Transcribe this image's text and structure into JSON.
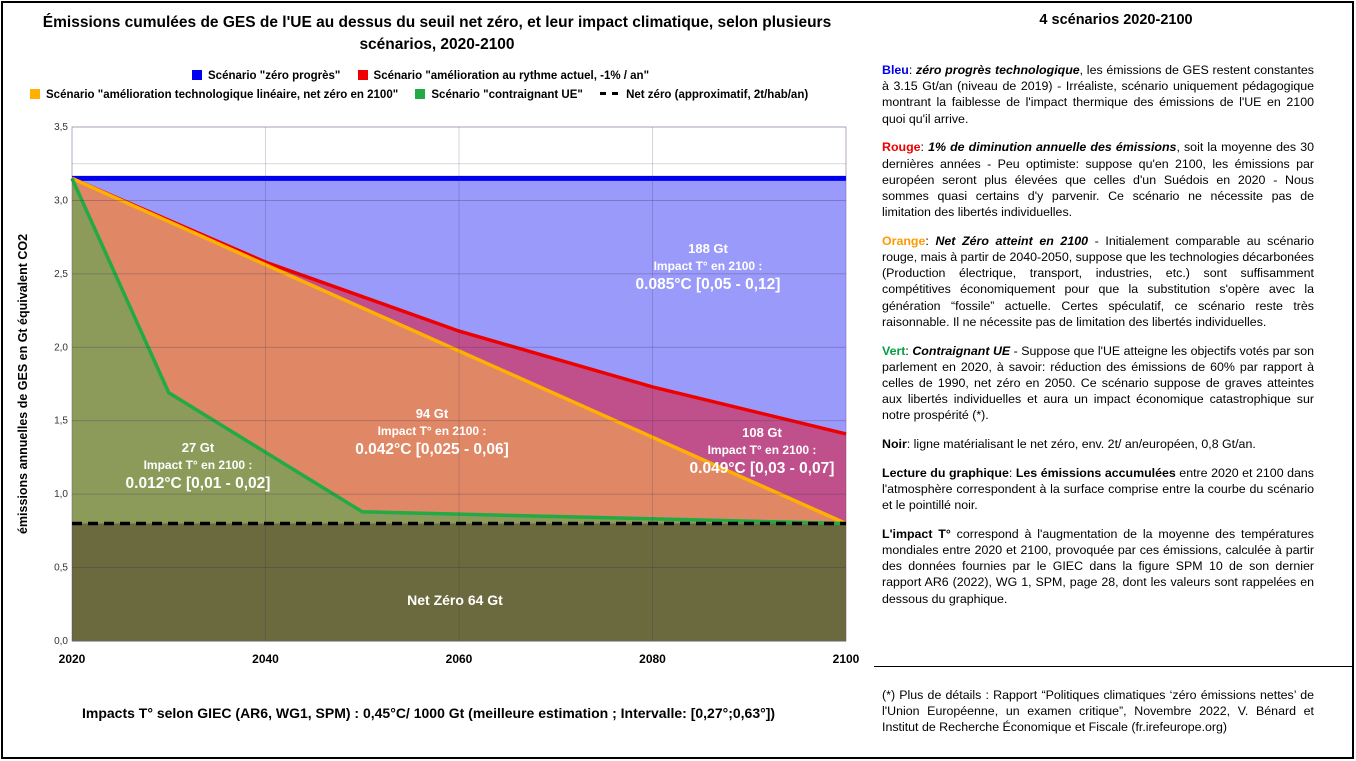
{
  "chart_data": {
    "type": "area",
    "title": "Émissions cumulées de GES de l'UE au dessus du seuil net zéro, et leur impact climatique, selon plusieurs scénarios, 2020-2100",
    "xlabel": "",
    "ylabel": "émissions annuelles de GES en Gt équivalent CO2",
    "xlim": [
      2020,
      2100
    ],
    "ylim": [
      0,
      3.5
    ],
    "x_ticks": [
      "2020",
      "2040",
      "2060",
      "2080",
      "2100"
    ],
    "y_ticks": [
      "0,0",
      "0,5",
      "1,0",
      "1,5",
      "2,0",
      "2,5",
      "3,0",
      "3,5"
    ],
    "grid": true,
    "legend_position": "top",
    "series": [
      {
        "name": "Scénario \"zéro progrès\"",
        "color": "#0000ee",
        "x": [
          2020,
          2100
        ],
        "y": [
          3.15,
          3.15
        ]
      },
      {
        "name": "Scénario \"amélioration au rythme actuel, -1% / an\"",
        "color": "#ee0000",
        "x": [
          2020,
          2040,
          2060,
          2080,
          2100
        ],
        "y": [
          3.15,
          2.58,
          2.11,
          1.73,
          1.41
        ]
      },
      {
        "name": "Scénario \"amélioration technologique linéaire, net zéro en 2100\"",
        "color": "#ffb000",
        "x": [
          2020,
          2100
        ],
        "y": [
          3.15,
          0.8
        ]
      },
      {
        "name": "Scénario \"contraignant UE\"",
        "color": "#22aa44",
        "x": [
          2020,
          2030,
          2050,
          2100
        ],
        "y": [
          3.15,
          1.69,
          0.88,
          0.8
        ]
      },
      {
        "name": "Net zéro (approximatif, 2t/hab/an)",
        "color": "#000000",
        "x": [
          2020,
          2100
        ],
        "y": [
          0.8,
          0.8
        ]
      }
    ],
    "annotations": {
      "blue": {
        "gt": "188 Gt",
        "impact": "Impact  T° en 2100 :",
        "value": "0.085°C [0,05 - 0,12]"
      },
      "orange": {
        "gt": "94 Gt",
        "impact": "Impact  T° en 2100 :",
        "value": "0.042°C [0,025 - 0,06]"
      },
      "red": {
        "gt": "108 Gt",
        "impact": "Impact  T° en 2100 :",
        "value": "0.049°C [0,03 - 0,07]"
      },
      "green": {
        "gt": "27 Gt",
        "impact": "Impact  T° en 2100 :",
        "value": "0.012°C [0,01 - 0,02]"
      },
      "netzero": {
        "label": "Net Zéro  64 Gt"
      }
    }
  },
  "footer": "Impacts T° selon GIEC (AR6, WG1, SPM) : 0,45°C/ 1000 Gt (meilleure estimation ; Intervalle: [0,27°;0,63°])",
  "right_panel": {
    "title": "4 scénarios 2020-2100",
    "blue": {
      "label": "Bleu",
      "title": "zéro progrès technologique",
      "text": ", les émissions de GES restent constantes à 3.15 Gt/an (niveau de 2019) - Irréaliste, scénario uniquement pédagogique montrant la faiblesse de l'impact thermique des émissions de l'UE en 2100 quoi qu'il arrive."
    },
    "red": {
      "label": "Rouge",
      "title": "1% de diminution annuelle des émissions",
      "text": ", soit la moyenne des 30 dernières années - Peu optimiste: suppose qu'en 2100, les émissions par européen seront plus élevées que celles d'un Suédois en 2020 - Nous sommes quasi certains d'y parvenir. Ce scénario ne nécessite pas de limitation des libertés individuelles."
    },
    "orange": {
      "label": "Orange",
      "title": "Net Zéro atteint en 2100",
      "text": " - Initialement comparable au scénario rouge, mais à partir de 2040-2050, suppose que les technologies décarbonées (Production électrique, transport, industries, etc.) sont suffisamment compétitives économiquement pour que la substitution s'opère avec la génération “fossile” actuelle. Certes spéculatif, ce scénario reste très raisonnable. Il ne nécessite pas de limitation des libertés individuelles."
    },
    "green": {
      "label": "Vert",
      "title": "Contraignant UE",
      "text": " - Suppose que l'UE atteigne les objectifs votés par son parlement en 2020, à savoir: réduction des émissions de 60% par rapport à celles de 1990, net zéro en 2050. Ce scénario suppose de graves atteintes aux libertés individuelles et aura un impact économique catastrophique sur notre prospérité (*)."
    },
    "black": {
      "label": "Noir",
      "text": ": ligne matérialisant le net zéro, env. 2t/ an/européen, 0,8 Gt/an."
    },
    "reading": {
      "label": "Lecture du graphique",
      "bold": "Les émissions accumulées",
      "text": " entre 2020 et 2100 dans l'atmosphère correspondent à la surface comprise entre la courbe du scénario et le pointillé noir."
    },
    "impact": {
      "label": "L'impact T°",
      "text": " correspond à l'augmentation de la moyenne des températures mondiales entre 2020 et 2100, provoquée par ces émissions, calculée à partir des données fournies par le GIEC dans la figure SPM 10 de son dernier rapport AR6 (2022), WG 1, SPM, page 28, dont les valeurs sont rappelées en dessous du graphique."
    },
    "note": "(*) Plus de détails : Rapport “Politiques climatiques ‘zéro émissions nettes’ de l'Union Européenne, un examen critique”, Novembre 2022, V. Bénard et Institut de Recherche Économique et Fiscale (fr.irefeurope.org)"
  },
  "colors": {
    "blue_area": "#9a9afa",
    "red_area": "#c0508c",
    "orange_area": "#e08866",
    "green_area": "#8c9a5a",
    "netzero_area": "#6b6a3e"
  }
}
